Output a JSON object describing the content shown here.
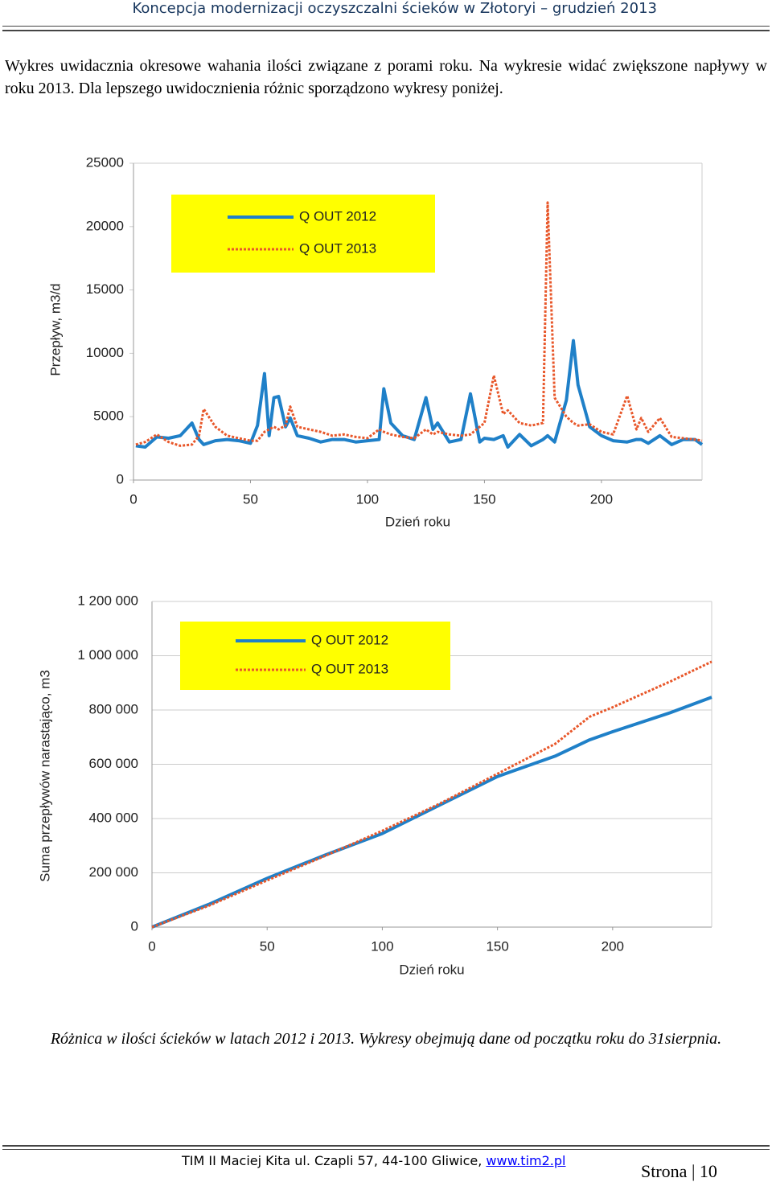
{
  "header": {
    "title": "Koncepcja modernizacji oczyszczalni ścieków w Złotoryi – grudzień 2013"
  },
  "paragraph": "Wykres uwidacznia okresowe wahania ilości związane z porami roku. Na wykresie widać zwiększone napływy w roku 2013. Dla lepszego uwidocznienia różnic sporządzono wykresy poniżej.",
  "chart_data": [
    {
      "type": "line",
      "y_label": "Przepływ, m3/d",
      "x_label": "Dzień roku",
      "legend": "top-left",
      "grid": false,
      "x": [
        1,
        5,
        10,
        15,
        20,
        25,
        28,
        30,
        35,
        40,
        45,
        50,
        53,
        56,
        58,
        60,
        62,
        65,
        67,
        70,
        75,
        80,
        85,
        90,
        95,
        100,
        105,
        107,
        110,
        115,
        120,
        125,
        128,
        130,
        135,
        140,
        144,
        148,
        150,
        154,
        158,
        160,
        165,
        170,
        175,
        177,
        180,
        185,
        188,
        190,
        195,
        200,
        205,
        211,
        215,
        217,
        220,
        225,
        230,
        235,
        240,
        243
      ],
      "series": [
        {
          "name": "Q OUT 2012",
          "color": "#1f80c8",
          "style": "solid",
          "values": [
            2700,
            2600,
            3400,
            3300,
            3500,
            4500,
            3200,
            2800,
            3100,
            3200,
            3100,
            2900,
            4300,
            8400,
            3500,
            6500,
            6600,
            4200,
            4900,
            3500,
            3300,
            3000,
            3200,
            3200,
            3000,
            3100,
            3200,
            7200,
            4500,
            3500,
            3200,
            6500,
            4000,
            4500,
            3000,
            3200,
            6800,
            3000,
            3300,
            3200,
            3500,
            2600,
            3600,
            2700,
            3200,
            3500,
            3000,
            6300,
            11000,
            7500,
            4200,
            3500,
            3100,
            3000,
            3200,
            3200,
            2900,
            3500,
            2800,
            3200,
            3200,
            2800
          ]
        },
        {
          "name": "Q OUT 2013",
          "color": "#e8572a",
          "style": "dotted",
          "values": [
            2800,
            3000,
            3600,
            3000,
            2700,
            2800,
            3500,
            5600,
            4200,
            3500,
            3300,
            3100,
            3100,
            3800,
            4000,
            4200,
            4000,
            4300,
            5800,
            4200,
            4000,
            3800,
            3500,
            3600,
            3400,
            3300,
            4000,
            3800,
            3600,
            3400,
            3300,
            4000,
            3600,
            3800,
            3600,
            3500,
            3600,
            4200,
            4500,
            8250,
            5200,
            5500,
            4500,
            4300,
            4500,
            21900,
            6500,
            5000,
            4500,
            4300,
            4400,
            3800,
            3600,
            6650,
            4000,
            4900,
            3800,
            4900,
            3400,
            3300,
            3200,
            3100
          ]
        }
      ],
      "xlim": [
        0,
        243
      ],
      "xticks": [
        0,
        50,
        100,
        150,
        200
      ],
      "ylim": [
        0,
        25000
      ],
      "yticks": [
        0,
        5000,
        10000,
        15000,
        20000,
        25000
      ]
    },
    {
      "type": "line",
      "y_label": "Suma przepływów narastająco, m3",
      "x_label": "Dzień roku",
      "legend": "top-left",
      "grid": true,
      "x": [
        0,
        25,
        50,
        75,
        100,
        125,
        150,
        175,
        190,
        200,
        225,
        243
      ],
      "series": [
        {
          "name": "Q OUT 2012",
          "color": "#1f80c8",
          "style": "solid",
          "values": [
            0,
            85000,
            180000,
            265000,
            345000,
            450000,
            555000,
            630000,
            690000,
            720000,
            790000,
            847000
          ]
        },
        {
          "name": "Q OUT 2013",
          "color": "#e8572a",
          "style": "dotted",
          "values": [
            0,
            80000,
            172000,
            262000,
            355000,
            455000,
            565000,
            675000,
            775000,
            810000,
            905000,
            978000
          ]
        }
      ],
      "xlim": [
        0,
        243
      ],
      "xticks": [
        0,
        50,
        100,
        150,
        200
      ],
      "ylim": [
        0,
        1200000
      ],
      "yticks": [
        0,
        {
          "value": 200000,
          "label": "200 000"
        },
        {
          "value": 400000,
          "label": "400 000"
        },
        {
          "value": 600000,
          "label": "600 000"
        },
        {
          "value": 800000,
          "label": "800 000"
        },
        {
          "value": 1000000,
          "label": "1 000 000"
        },
        {
          "value": 1200000,
          "label": "1 200 000"
        }
      ]
    }
  ],
  "caption": "Różnica w ilości ścieków w latach 2012 i 2013. Wykresy obejmują dane od początku roku do 31sierpnia.",
  "footer": {
    "address": "TIM II Maciej Kita ul. Czapli 57, 44-100 Gliwice, ",
    "link": "www.tim2.pl",
    "page_label": "Strona",
    "page_number": "10"
  }
}
